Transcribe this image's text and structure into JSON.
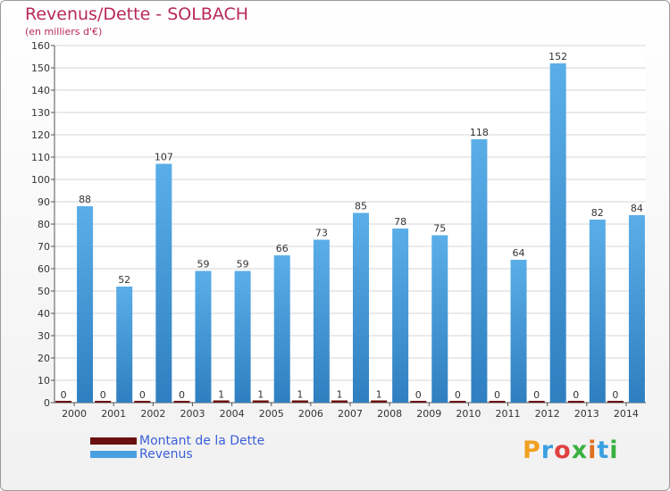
{
  "title": "Revenus/Dette - SOLBACH",
  "subtitle": "(en milliers d'€)",
  "colors": {
    "title": "#b8285a",
    "revenus": "#4a9fe0",
    "dette": "#6b1010",
    "legend_text": "#3a5fd9"
  },
  "legend": [
    {
      "label": "Montant de la Dette",
      "color": "#6b1010"
    },
    {
      "label": "Revenus",
      "color": "#4a9fe0"
    }
  ],
  "logo": {
    "text": "Proxiti"
  },
  "chart_data": {
    "type": "bar",
    "title": "Revenus/Dette - SOLBACH",
    "ylabel": "(en milliers d'€)",
    "ylim": [
      0,
      160
    ],
    "yticks": [
      0,
      10,
      20,
      30,
      40,
      50,
      60,
      70,
      80,
      90,
      100,
      110,
      120,
      130,
      140,
      150,
      160
    ],
    "grid": true,
    "legend_position": "bottom-left",
    "categories": [
      "2000",
      "2001",
      "2002",
      "2003",
      "2004",
      "2005",
      "2006",
      "2007",
      "2008",
      "2009",
      "2010",
      "2011",
      "2012",
      "2013",
      "2014"
    ],
    "series": [
      {
        "name": "Montant de la Dette",
        "values": [
          0,
          0,
          0,
          0,
          1,
          1,
          1,
          1,
          1,
          0,
          0,
          0,
          0,
          0,
          0
        ]
      },
      {
        "name": "Revenus",
        "values": [
          88,
          52,
          107,
          59,
          59,
          66,
          73,
          85,
          78,
          75,
          118,
          64,
          152,
          82,
          84
        ]
      }
    ]
  }
}
